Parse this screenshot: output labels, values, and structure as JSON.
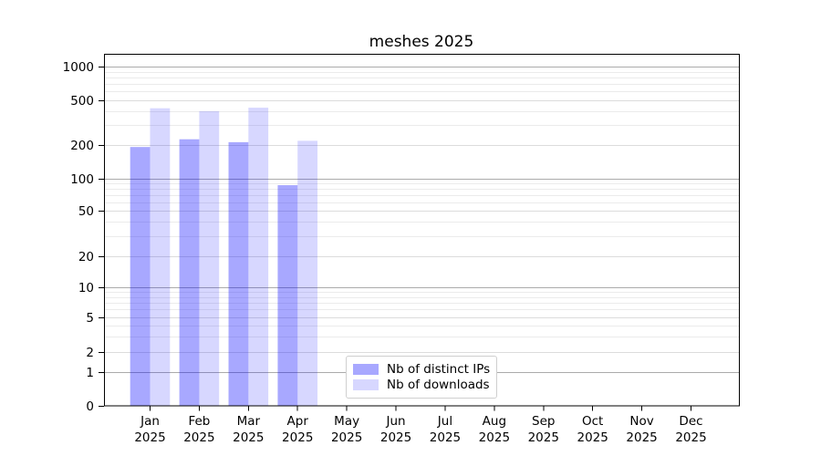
{
  "chart_data": {
    "type": "bar",
    "title": "meshes 2025",
    "categories": [
      "Jan",
      "Feb",
      "Mar",
      "Apr",
      "May",
      "Jun",
      "Jul",
      "Aug",
      "Sep",
      "Oct",
      "Nov",
      "Dec"
    ],
    "category_year": "2025",
    "series": [
      {
        "name": "Nb of distinct IPs",
        "color": "rgba(0,0,255,0.34)",
        "values": [
          192,
          225,
          212,
          87,
          null,
          null,
          null,
          null,
          null,
          null,
          null,
          null
        ]
      },
      {
        "name": "Nb of downloads",
        "color": "rgba(0,0,255,0.155)",
        "values": [
          425,
          400,
          430,
          218,
          null,
          null,
          null,
          null,
          null,
          null,
          null,
          null
        ]
      }
    ],
    "xlabel": "",
    "ylabel": "",
    "yaxis": {
      "scale": "symlog",
      "tick_values": [
        0,
        1,
        2,
        5,
        10,
        20,
        50,
        100,
        200,
        500,
        1000
      ],
      "tick_labels": [
        "0",
        "1",
        "2",
        "5",
        "10",
        "20",
        "50",
        "100",
        "200",
        "500",
        "1000"
      ],
      "minor_tick_values": [
        3,
        4,
        6,
        7,
        8,
        9,
        30,
        40,
        60,
        70,
        80,
        90,
        300,
        400,
        600,
        700,
        800,
        900
      ],
      "range_top": 1300
    },
    "grid": "both",
    "legend_position": "inside-bottom-center-left"
  },
  "colors": {
    "background": "#ffffff",
    "axis": "#000000",
    "text": "#000000",
    "grid_decade": "#ababab",
    "grid_labeled": "#dcdcdc",
    "grid_minor": "#ebebeb",
    "ip_bar": "rgba(0,0,255,0.34)",
    "downloads_bar": "rgba(0,0,255,0.155)"
  }
}
